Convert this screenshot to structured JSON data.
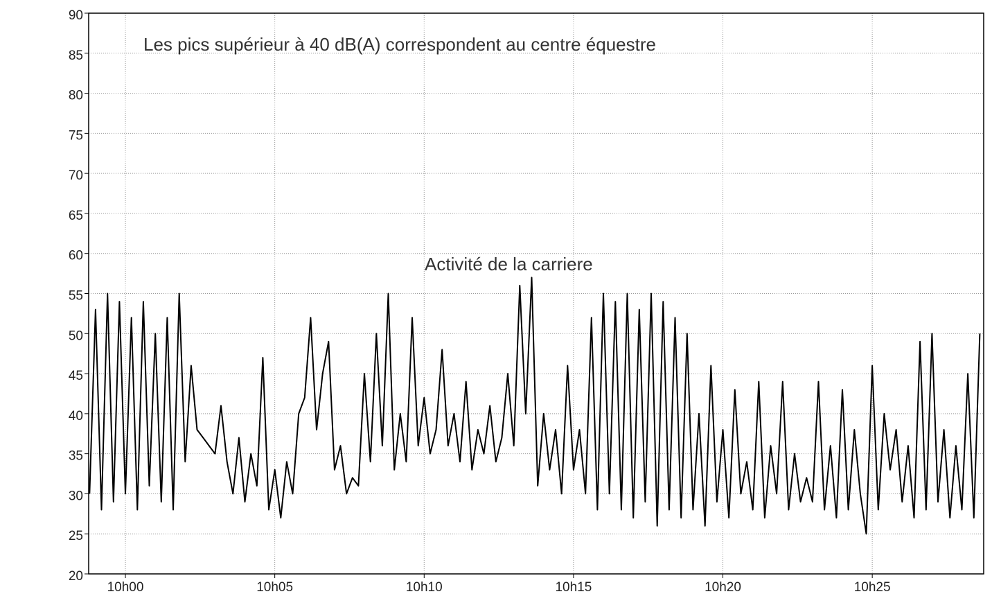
{
  "chart_data": {
    "type": "line",
    "annotations": [
      "Les pics supérieur à 40 dB(A) correspondent au centre équestre",
      "Activité de la carriere"
    ],
    "x": [
      -1.2,
      -1,
      -0.8,
      -0.6,
      -0.4,
      -0.2,
      0,
      0.2,
      0.4,
      0.6,
      0.8,
      1,
      1.2,
      1.4,
      1.6,
      1.8,
      2,
      2.2,
      2.4,
      2.6,
      2.8,
      3,
      3.2,
      3.4,
      3.6,
      3.8,
      4,
      4.2,
      4.4,
      4.6,
      4.8,
      5,
      5.2,
      5.4,
      5.6,
      5.8,
      6,
      6.2,
      6.4,
      6.6,
      6.8,
      7,
      7.2,
      7.4,
      7.6,
      7.8,
      8,
      8.2,
      8.4,
      8.6,
      8.8,
      9,
      9.2,
      9.4,
      9.6,
      9.8,
      10,
      10.2,
      10.4,
      10.6,
      10.8,
      11,
      11.2,
      11.4,
      11.6,
      11.8,
      12,
      12.2,
      12.4,
      12.6,
      12.8,
      13,
      13.2,
      13.4,
      13.6,
      13.8,
      14,
      14.2,
      14.4,
      14.6,
      14.8,
      15,
      15.2,
      15.4,
      15.6,
      15.8,
      16,
      16.2,
      16.4,
      16.6,
      16.8,
      17,
      17.2,
      17.4,
      17.6,
      17.8,
      18,
      18.2,
      18.4,
      18.6,
      18.8,
      19,
      19.2,
      19.4,
      19.6,
      19.8,
      20,
      20.2,
      20.4,
      20.6,
      20.8,
      21,
      21.2,
      21.4,
      21.6,
      21.8,
      22,
      22.2,
      22.4,
      22.6,
      22.8,
      23,
      23.2,
      23.4,
      23.6,
      23.8,
      24,
      24.2,
      24.4,
      24.6,
      24.8,
      25,
      25.2,
      25.4,
      25.6,
      25.8,
      26,
      26.2,
      26.4,
      26.6,
      26.8,
      27,
      27.2,
      27.4,
      27.6,
      27.8,
      28,
      28.2,
      28.4,
      28.6
    ],
    "series": [
      {
        "color": "#000000",
        "values": [
          30,
          53,
          28,
          55,
          29,
          54,
          30,
          52,
          28,
          54,
          31,
          50,
          29,
          52,
          28,
          55,
          34,
          46,
          38,
          37,
          36,
          35,
          41,
          34,
          30,
          37,
          29,
          35,
          31,
          47,
          28,
          33,
          27,
          34,
          30,
          40,
          42,
          52,
          38,
          45,
          49,
          33,
          36,
          30,
          32,
          31,
          45,
          34,
          50,
          36,
          55,
          33,
          40,
          34,
          52,
          36,
          42,
          35,
          38,
          48,
          36,
          40,
          34,
          44,
          33,
          38,
          35,
          41,
          34,
          37,
          45,
          36,
          56,
          40,
          57,
          31,
          40,
          33,
          38,
          30,
          46,
          33,
          38,
          30,
          52,
          28,
          55,
          30,
          54,
          28,
          55,
          27,
          53,
          29,
          55,
          26,
          54,
          28,
          52,
          27,
          50,
          28,
          40,
          26,
          46,
          29,
          38,
          27,
          43,
          30,
          34,
          28,
          44,
          27,
          36,
          30,
          44,
          28,
          35,
          29,
          32,
          29,
          44,
          28,
          36,
          27,
          43,
          28,
          38,
          30,
          25,
          46,
          28,
          40,
          33,
          38,
          29,
          36,
          27,
          49,
          28,
          50,
          29,
          38,
          27,
          36,
          28,
          45,
          27,
          50
        ]
      }
    ],
    "xlim": [
      -1.23,
      28.73
    ],
    "xticks": [
      {
        "value": 0,
        "label": "10h00"
      },
      {
        "value": 5,
        "label": "10h05"
      },
      {
        "value": 10,
        "label": "10h10"
      },
      {
        "value": 15,
        "label": "10h15"
      },
      {
        "value": 20,
        "label": "10h20"
      },
      {
        "value": 25,
        "label": "10h25"
      }
    ],
    "ylim": [
      20,
      90
    ],
    "yticks": [
      20,
      25,
      30,
      35,
      40,
      45,
      50,
      55,
      60,
      65,
      70,
      75,
      80,
      85,
      90
    ],
    "grid": true
  }
}
